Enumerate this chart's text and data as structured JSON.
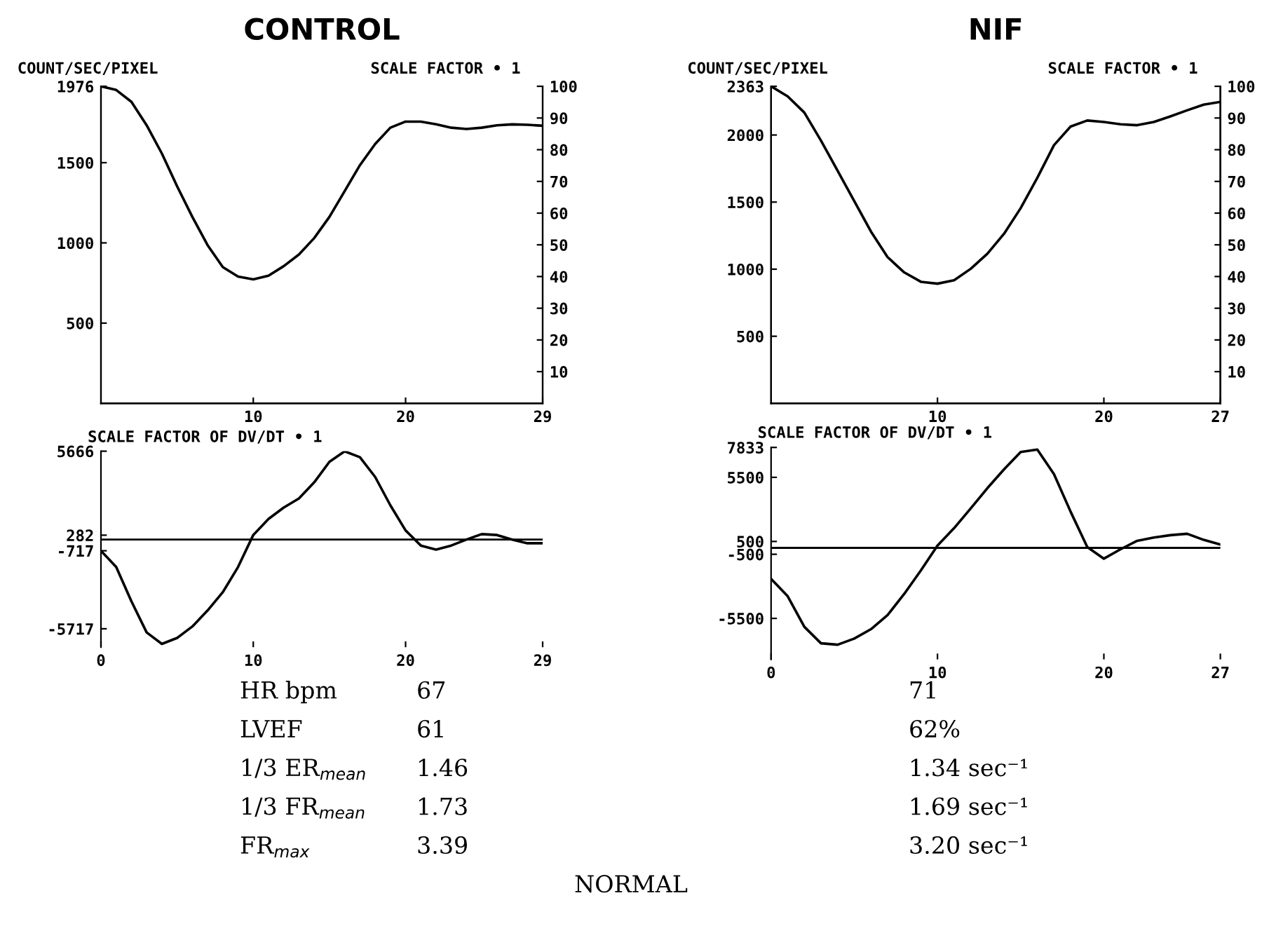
{
  "chart_data": [
    {
      "type": "line",
      "title": "CONTROL",
      "ylabel": "COUNT/SEC/PIXEL",
      "annotations": [
        "SCALE FACTOR • 1"
      ],
      "x": [
        0,
        1,
        2,
        3,
        4,
        5,
        6,
        7,
        8,
        9,
        10,
        11,
        12,
        13,
        14,
        15,
        16,
        17,
        18,
        19,
        20,
        21,
        22,
        23,
        24,
        25,
        26,
        27,
        28,
        29
      ],
      "series": [
        {
          "color": "#000000",
          "values": [
            1976,
            1953,
            1879,
            1733,
            1557,
            1353,
            1162,
            986,
            849,
            790,
            773,
            796,
            855,
            928,
            1030,
            1162,
            1323,
            1484,
            1616,
            1718,
            1756,
            1756,
            1739,
            1718,
            1710,
            1718,
            1733,
            1739,
            1736,
            1730
          ]
        }
      ],
      "xlim": [
        0,
        29
      ],
      "xticks": [
        10,
        20,
        29
      ],
      "ylim": [
        0,
        1976
      ],
      "yticks": [
        500,
        1000,
        1500,
        1976
      ],
      "y2lim": [
        0,
        100
      ],
      "y2ticks": [
        10,
        20,
        30,
        40,
        50,
        60,
        70,
        80,
        90,
        100
      ],
      "grid": false,
      "legend": false
    },
    {
      "type": "line",
      "annotations": [
        "SCALE FACTOR OF DV/DT • 1"
      ],
      "x": [
        0,
        1,
        2,
        3,
        4,
        5,
        6,
        7,
        8,
        9,
        10,
        11,
        12,
        13,
        14,
        15,
        16,
        17,
        18,
        19,
        20,
        21,
        22,
        23,
        24,
        25,
        26,
        27,
        28,
        29
      ],
      "series": [
        {
          "color": "#000000",
          "values": [
            -717,
            -1760,
            -3958,
            -5952,
            -6686,
            -6305,
            -5572,
            -4545,
            -3372,
            -1760,
            293,
            1320,
            2053,
            2639,
            3666,
            4985,
            5660,
            5279,
            4018,
            2199,
            586,
            -381,
            -645,
            -381,
            0,
            352,
            293,
            0,
            -235,
            -235
          ]
        }
      ],
      "xlim": [
        0,
        29
      ],
      "xticks": [
        0,
        10,
        20,
        29
      ],
      "ylim": [
        -6900,
        5666
      ],
      "yticks": [
        -5717,
        -717,
        282,
        5666
      ],
      "ref_lines": [
        {
          "axis": "y",
          "value": 0
        }
      ],
      "grid": false,
      "legend": false
    },
    {
      "type": "line",
      "title": "NIF",
      "ylabel": "COUNT/SEC/PIXEL",
      "annotations": [
        "SCALE FACTOR • 1"
      ],
      "x": [
        0,
        1,
        2,
        3,
        4,
        5,
        6,
        7,
        8,
        9,
        10,
        11,
        12,
        13,
        14,
        15,
        16,
        17,
        18,
        19,
        20,
        21,
        22,
        23,
        24,
        25,
        26,
        27
      ],
      "series": [
        {
          "color": "#000000",
          "values": [
            2363,
            2288,
            2167,
            1958,
            1733,
            1507,
            1281,
            1090,
            976,
            906,
            892,
            917,
            1003,
            1115,
            1264,
            1455,
            1681,
            1924,
            2063,
            2108,
            2097,
            2080,
            2073,
            2097,
            2139,
            2184,
            2226,
            2247
          ]
        }
      ],
      "xlim": [
        0,
        27
      ],
      "xticks": [
        10,
        20,
        27
      ],
      "ylim": [
        0,
        2363
      ],
      "yticks": [
        500,
        1000,
        1500,
        2000,
        2363
      ],
      "y2lim": [
        0,
        100
      ],
      "y2ticks": [
        10,
        20,
        30,
        40,
        50,
        60,
        70,
        80,
        90,
        100
      ],
      "grid": false,
      "legend": false
    },
    {
      "type": "line",
      "annotations": [
        "SCALE FACTOR OF DV/DT • 1"
      ],
      "x": [
        0,
        1,
        2,
        3,
        4,
        5,
        6,
        7,
        8,
        9,
        10,
        11,
        12,
        13,
        14,
        15,
        16,
        17,
        18,
        19,
        20,
        21,
        22,
        23,
        24,
        25,
        26,
        27
      ],
      "series": [
        {
          "color": "#000000",
          "values": [
            -2420,
            -3777,
            -6160,
            -7444,
            -7554,
            -7077,
            -6344,
            -5244,
            -3594,
            -1760,
            183,
            1540,
            3080,
            4657,
            6124,
            7480,
            7664,
            5757,
            2823,
            73,
            -843,
            -110,
            550,
            807,
            990,
            1100,
            623,
            257
          ]
        }
      ],
      "xlim": [
        0,
        27
      ],
      "xticks": [
        0,
        10,
        20,
        27
      ],
      "ylim": [
        -8700,
        7833
      ],
      "yticks": [
        -5500,
        -500,
        500,
        5500,
        7833
      ],
      "ref_lines": [
        {
          "axis": "y",
          "value": 0
        }
      ],
      "grid": false,
      "legend": false
    },
    {
      "type": "other",
      "title": "NORMAL",
      "annotations": [
        "HR bpm",
        "67",
        "71",
        "LVEF",
        "61",
        "62%",
        "1/3 ER$_{mean}$",
        "1.46",
        "1.34 sec⁻¹",
        "1/3 FR$_{mean}$",
        "1.73",
        "1.69 sec⁻¹",
        "FR$_{max}$",
        "3.39",
        "3.20 sec⁻¹"
      ]
    }
  ]
}
